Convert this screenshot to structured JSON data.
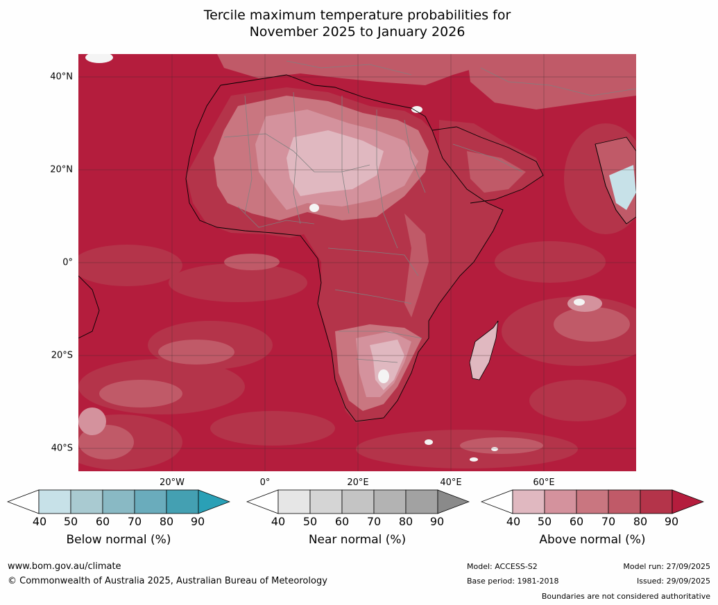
{
  "title_line1": "Tercile maximum temperature probabilities for",
  "title_line2": "November 2025 to January 2026",
  "lat_labels": [
    "40°N",
    "20°N",
    "0°",
    "20°S",
    "40°S"
  ],
  "lon_labels": [
    "20°W",
    "0°",
    "20°E",
    "40°E",
    "60°E"
  ],
  "colorbars": [
    {
      "label": "Below normal (%)",
      "ticks": [
        "40",
        "50",
        "60",
        "70",
        "80",
        "90"
      ],
      "colors": [
        "#ffffff",
        "#c7e1e8",
        "#a9cad1",
        "#89b9c4",
        "#6aacbc",
        "#44a0b2",
        "#2aa0b6"
      ]
    },
    {
      "label": "Near normal (%)",
      "ticks": [
        "40",
        "50",
        "60",
        "70",
        "80",
        "90"
      ],
      "colors": [
        "#ffffff",
        "#e6e6e6",
        "#d5d5d5",
        "#c4c4c4",
        "#b3b3b3",
        "#a2a2a2",
        "#8a8a8a"
      ]
    },
    {
      "label": "Above normal (%)",
      "ticks": [
        "40",
        "50",
        "60",
        "70",
        "80",
        "90"
      ],
      "colors": [
        "#ffffff",
        "#e0b8c0",
        "#d4929d",
        "#c97680",
        "#c05a68",
        "#b4344a",
        "#b41d3d"
      ]
    }
  ],
  "footer": {
    "website": "www.bom.gov.au/climate",
    "copyright": "© Commonwealth of Australia 2025, Australian Bureau of Meteorology",
    "model": "Model: ACCESS-S2",
    "base_period": "Base period: 1981-2018",
    "model_run": "Model run: 27/09/2025",
    "issued": "Issued: 29/09/2025",
    "disclaimer": "Boundaries are not considered authoritative"
  }
}
